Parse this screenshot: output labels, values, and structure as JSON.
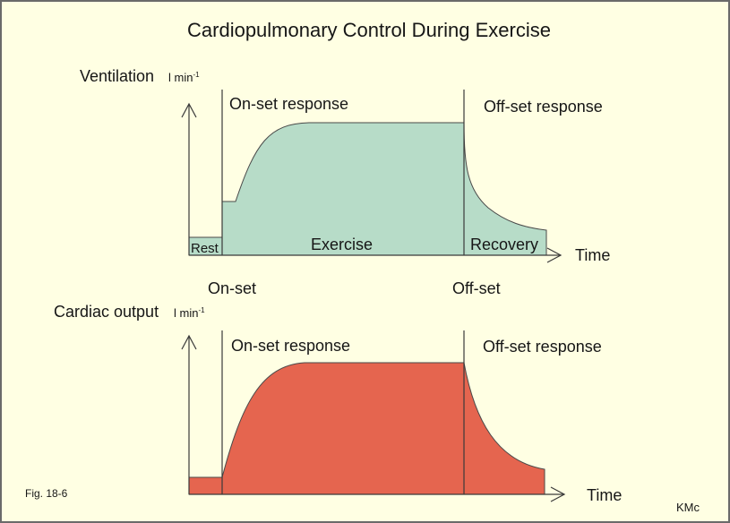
{
  "title": "Cardiopulmonary Control During Exercise",
  "colors": {
    "background": "#FFFFE3",
    "ventilation_fill": "#B7DCC8",
    "cardiac_fill": "#E5654F"
  },
  "ventilation_panel": {
    "y_label": "Ventilation",
    "unit": "l min",
    "unit_exponent": "-1",
    "onset_response_label": "On-set response",
    "offset_response_label": "Off-set response",
    "rest_label": "Rest",
    "exercise_label": "Exercise",
    "recovery_label": "Recovery",
    "x_label": "Time"
  },
  "phase_markers": {
    "onset_label": "On-set",
    "offset_label": "Off-set"
  },
  "cardiac_output_panel": {
    "y_label": "Cardiac output",
    "unit": "l min",
    "unit_exponent": "-1",
    "onset_response_label": "On-set response",
    "offset_response_label": "Off-set response",
    "x_label": "Time"
  },
  "figure_label": "Fig. 18-6",
  "credit": "KMc"
}
